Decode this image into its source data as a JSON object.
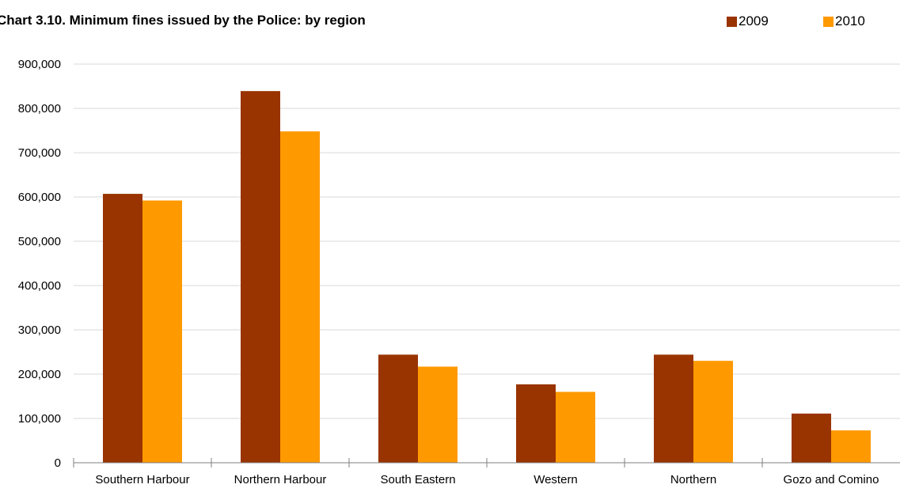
{
  "chart_data": {
    "type": "bar",
    "title": "Chart 3.10. Minimum fines issued by the Police: by region",
    "xlabel": "",
    "ylabel": "",
    "categories": [
      "Southern Harbour",
      "Northern Harbour",
      "South Eastern",
      "Western",
      "Northern",
      "Gozo and Comino"
    ],
    "series": [
      {
        "name": "2009",
        "color": "#993300",
        "values": [
          607000,
          839000,
          244000,
          177000,
          244000,
          111000
        ]
      },
      {
        "name": "2010",
        "color": "#FF9900",
        "values": [
          592000,
          748000,
          217000,
          160000,
          230000,
          73000
        ]
      }
    ],
    "ylim": [
      0,
      900000
    ],
    "yticks": [
      "0",
      "100,000",
      "200,000",
      "300,000",
      "400,000",
      "500,000",
      "600,000",
      "700,000",
      "800,000",
      "900,000"
    ],
    "grid": true,
    "legend_position": "top-right"
  }
}
